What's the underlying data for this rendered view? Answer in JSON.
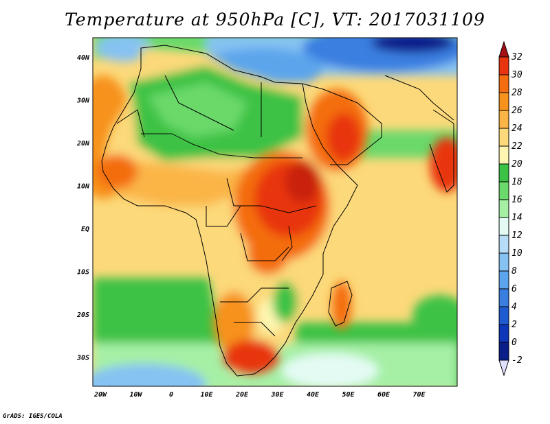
{
  "title": "Temperature at 950hPa [C], VT: 2017031109",
  "footer": "GrADS: IGES/COLA",
  "axes": {
    "lon_ticks": [
      "20W",
      "10W",
      "0",
      "10E",
      "20E",
      "30E",
      "40E",
      "50E",
      "60E",
      "70E"
    ],
    "lat_ticks": [
      "40N",
      "30N",
      "20N",
      "10N",
      "EQ",
      "10S",
      "20S",
      "30S"
    ]
  },
  "colorbar": {
    "labels": [
      "32",
      "30",
      "28",
      "26",
      "24",
      "22",
      "20",
      "18",
      "16",
      "14",
      "12",
      "10",
      "8",
      "6",
      "4",
      "2",
      "0",
      "-2"
    ],
    "colors": [
      "#a50f15",
      "#e8340f",
      "#f46d0f",
      "#f7921c",
      "#fbb546",
      "#fcd97a",
      "#fef6b0",
      "#3cc245",
      "#6bd96b",
      "#a6f0a6",
      "#e4fbf4",
      "#b6dcf7",
      "#86c2f2",
      "#5ca5ec",
      "#3a7fe0",
      "#1f5bd0",
      "#0d36b8",
      "#0a1e8a",
      "#e0e0ff"
    ]
  },
  "colors": {
    "ocean_cool": "#fcd97a",
    "land_hot": "#e8340f"
  }
}
